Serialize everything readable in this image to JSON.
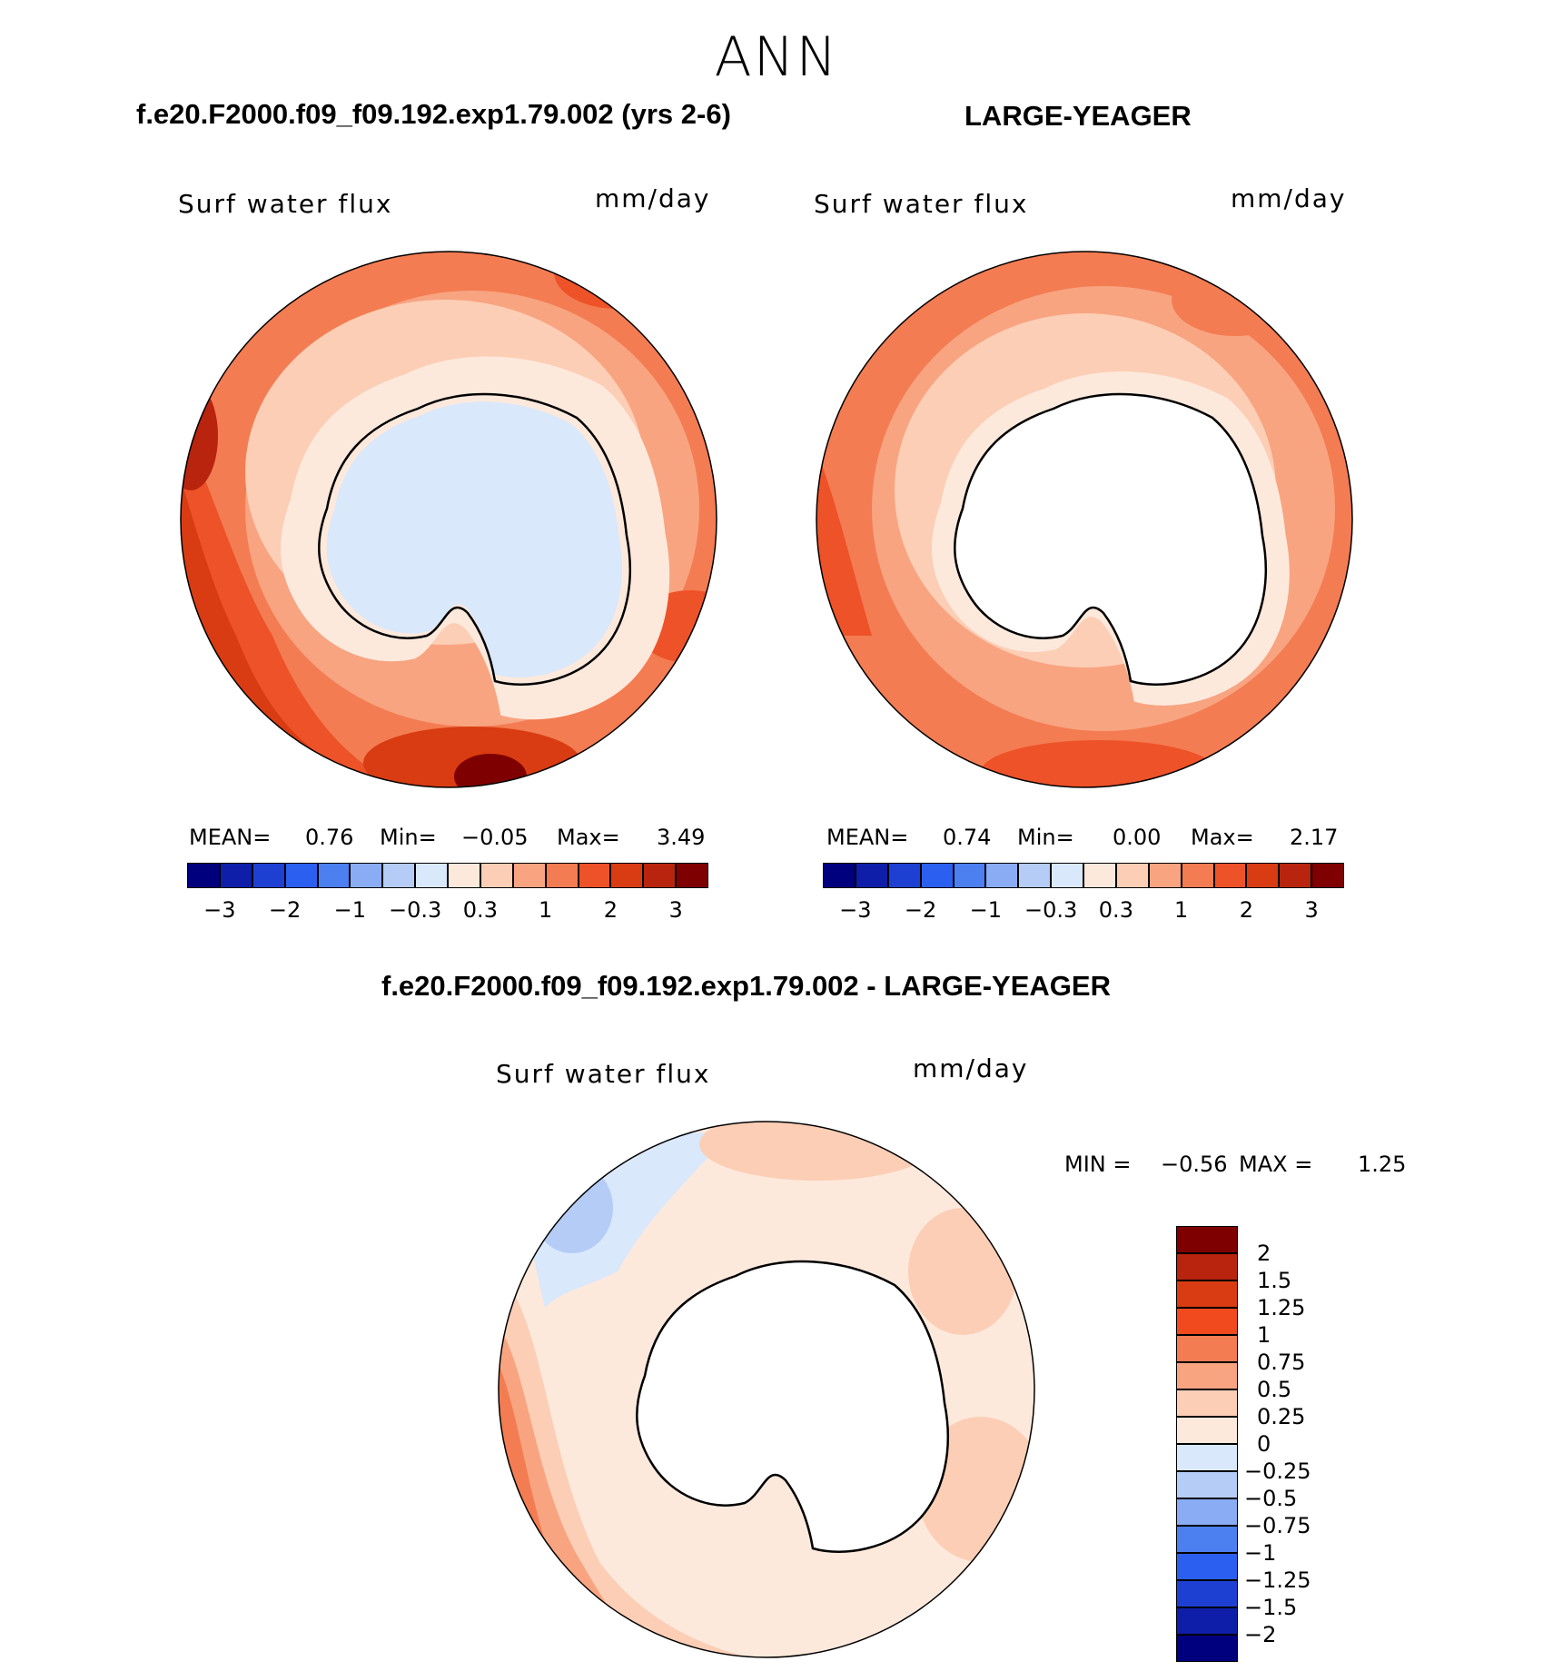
{
  "title": "ANN",
  "panels": [
    {
      "run_title": "f.e20.F2000.f09_f09.192.exp1.79.002 (yrs 2-6)",
      "variable": "Surf water flux",
      "units": "mm/day",
      "stats": {
        "mean_label": "MEAN=",
        "mean": "0.76",
        "min_label": "Min=",
        "min": "−0.05",
        "max_label": "Max=",
        "max": "3.49"
      }
    },
    {
      "run_title": "LARGE-YEAGER",
      "variable": "Surf water flux",
      "units": "mm/day",
      "stats": {
        "mean_label": "MEAN=",
        "mean": "0.74",
        "min_label": "Min=",
        "min": "0.00",
        "max_label": "Max=",
        "max": "2.17"
      }
    }
  ],
  "main_colorbar": {
    "colors": [
      "#00007f",
      "#0e1ea8",
      "#1e40d2",
      "#2b5ff0",
      "#4c7ff0",
      "#8aacf5",
      "#b5ccf7",
      "#d9e8fb",
      "#fde9dc",
      "#fcceb5",
      "#f8a481",
      "#f47c52",
      "#ee5228",
      "#d93c12",
      "#b8240e",
      "#7f0000"
    ],
    "tick_labels": [
      "−3",
      "−2",
      "−1",
      "−0.3",
      "0.3",
      "1",
      "2",
      "3"
    ]
  },
  "diff_panel": {
    "run_title": "f.e20.F2000.f09_f09.192.exp1.79.002 - LARGE-YEAGER",
    "variable": "Surf water flux",
    "units": "mm/day",
    "stats": {
      "min_label": "MIN =",
      "min": "−0.56",
      "max_label": "MAX =",
      "max": "1.25"
    }
  },
  "diff_colorbar": {
    "colors": [
      "#7f0000",
      "#b8240e",
      "#d93c12",
      "#f04a1e",
      "#f47c52",
      "#f8a481",
      "#fcceb5",
      "#fde9dc",
      "#d9e8fb",
      "#b5ccf7",
      "#8aacf5",
      "#4c7ff0",
      "#2b5ff0",
      "#1e40d2",
      "#0e1ea8",
      "#00007f"
    ],
    "levels": [
      "2",
      "1.5",
      "1.25",
      "1",
      "0.75",
      "0.5",
      "0.25",
      "0",
      "−0.25",
      "−0.5",
      "−0.75",
      "−1",
      "−1.25",
      "−1.5",
      "−2"
    ]
  },
  "map_colors": {
    "land": "#ffffff",
    "coast": "#000000",
    "level_0_03": "#fde9dc",
    "level_03_1": "#fcceb5",
    "level_1_15": "#f8a481",
    "level_15_2": "#f47c52",
    "level_2_25": "#ee5228",
    "level_25_3": "#d93c12",
    "level_3_35": "#b8240e",
    "level_high": "#7f0000",
    "neg_small": "#d9e8fb",
    "neg_mid": "#b5ccf7",
    "neg_large": "#8aacf5"
  }
}
